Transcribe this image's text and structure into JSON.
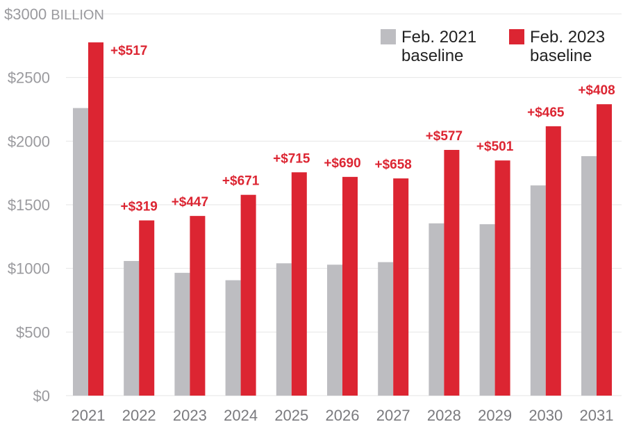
{
  "chart_data": {
    "type": "bar",
    "title": "",
    "xlabel": "",
    "ylabel": "",
    "unit_label": "BILLION",
    "ylim": [
      0,
      3000
    ],
    "y_ticks": [
      {
        "value": 0,
        "label": "$0"
      },
      {
        "value": 500,
        "label": "$500"
      },
      {
        "value": 1000,
        "label": "$1000"
      },
      {
        "value": 1500,
        "label": "$1500"
      },
      {
        "value": 2000,
        "label": "$2000"
      },
      {
        "value": 2500,
        "label": "$2500"
      },
      {
        "value": 3000,
        "label": "$3000"
      }
    ],
    "grid": true,
    "legend_position": "top-right",
    "categories": [
      "2021",
      "2022",
      "2023",
      "2024",
      "2025",
      "2026",
      "2027",
      "2028",
      "2029",
      "2030",
      "2031"
    ],
    "series": [
      {
        "name": "Feb. 2021 baseline",
        "legend_lines": [
          "Feb. 2021",
          "baseline"
        ],
        "color": "#bdbdc1",
        "values": [
          2260,
          1058,
          965,
          907,
          1040,
          1029,
          1049,
          1354,
          1347,
          1652,
          1882
        ]
      },
      {
        "name": "Feb. 2023 baseline",
        "legend_lines": [
          "Feb. 2023",
          "baseline"
        ],
        "color": "#dc2532",
        "values": [
          2776,
          1377,
          1412,
          1578,
          1755,
          1719,
          1707,
          1931,
          1848,
          2117,
          2290
        ]
      }
    ],
    "annotations": [
      "+$517",
      "+$319",
      "+$447",
      "+$671",
      "+$715",
      "+$690",
      "+$658",
      "+$577",
      "+$501",
      "+$465",
      "+$408"
    ],
    "annotation_color": "#dc2532",
    "grid_color": "#e6e6e6"
  }
}
